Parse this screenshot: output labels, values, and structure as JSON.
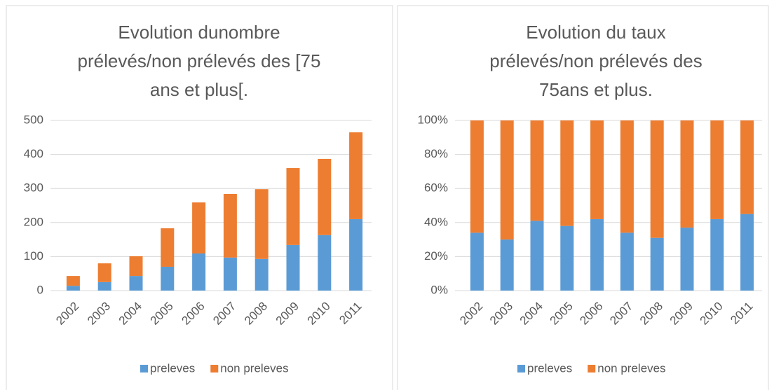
{
  "chart_data": [
    {
      "type": "bar",
      "stacked": true,
      "title": [
        "Evolution dunombre",
        "prélevés/non prélevés des [75",
        "ans et plus[."
      ],
      "categories": [
        "2002",
        "2003",
        "2004",
        "2005",
        "2006",
        "2007",
        "2008",
        "2009",
        "2010",
        "2011"
      ],
      "series": [
        {
          "name": "preleves",
          "color": "#5b9bd5",
          "values": [
            14,
            25,
            43,
            70,
            109,
            97,
            93,
            134,
            163,
            210
          ]
        },
        {
          "name": "non preleves",
          "color": "#ed7d31",
          "values": [
            29,
            55,
            58,
            113,
            150,
            187,
            205,
            226,
            224,
            255
          ]
        }
      ],
      "ylim": [
        0,
        500
      ],
      "yticks": [
        0,
        100,
        200,
        300,
        400,
        500
      ],
      "grid": true,
      "legend": "bottom"
    },
    {
      "type": "bar",
      "stacked": true,
      "title": [
        "Evolution du taux",
        "prélevés/non prélevés des",
        "75ans et plus."
      ],
      "categories": [
        "2002",
        "2003",
        "2004",
        "2005",
        "2006",
        "2007",
        "2008",
        "2009",
        "2010",
        "2011"
      ],
      "series": [
        {
          "name": "preleves",
          "color": "#5b9bd5",
          "values": [
            34,
            30,
            41,
            38,
            42,
            34,
            31,
            37,
            42,
            45
          ]
        },
        {
          "name": "non preleves",
          "color": "#ed7d31",
          "values": [
            66,
            70,
            59,
            62,
            58,
            66,
            69,
            63,
            58,
            55
          ]
        }
      ],
      "ylim": [
        0,
        100
      ],
      "yticks": [
        {
          "value": 0,
          "label": "0%"
        },
        {
          "value": 20,
          "label": "20%"
        },
        {
          "value": 40,
          "label": "40%"
        },
        {
          "value": 60,
          "label": "60%"
        },
        {
          "value": 80,
          "label": "80%"
        },
        {
          "value": 100,
          "label": "100%"
        }
      ],
      "grid": true,
      "legend": "bottom"
    }
  ]
}
